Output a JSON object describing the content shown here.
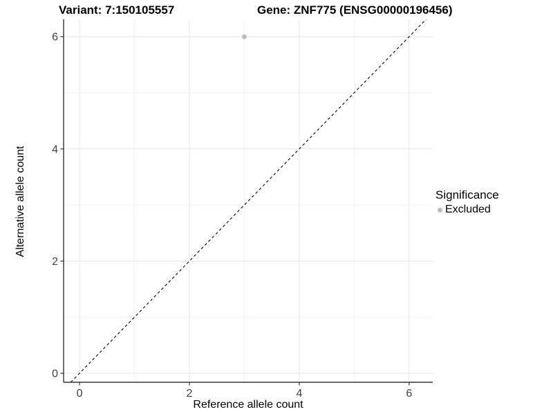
{
  "chart_data": {
    "type": "scatter",
    "title_variant": "Variant: 7:150105557",
    "title_gene": "Gene: ZNF775 (ENSG00000196456)",
    "xlabel": "Reference allele count",
    "ylabel": "Alternative allele count",
    "xlim": [
      -0.29,
      6.43
    ],
    "ylim": [
      -0.16,
      6.31
    ],
    "x_ticks": [
      0,
      2,
      4,
      6
    ],
    "y_ticks": [
      0,
      2,
      4,
      6
    ],
    "x_minor_ticks": [
      1,
      3,
      5
    ],
    "y_minor_ticks": [
      1,
      3,
      5
    ],
    "grid": true,
    "series": [
      {
        "name": "Excluded",
        "color": "#bdbdbd",
        "points": [
          [
            3,
            6
          ]
        ]
      }
    ],
    "reference_line": {
      "slope": 1,
      "intercept": 0,
      "style": "dashed",
      "color": "#000000"
    },
    "legend": {
      "title": "Significance",
      "position": "right",
      "entries": [
        "Excluded"
      ]
    }
  },
  "colors": {
    "grid_major": "#e6e6e6",
    "grid_minor": "#f2f2f2",
    "axis_line": "#333333",
    "tick_label": "#404040",
    "point": "#bdbdbd"
  }
}
